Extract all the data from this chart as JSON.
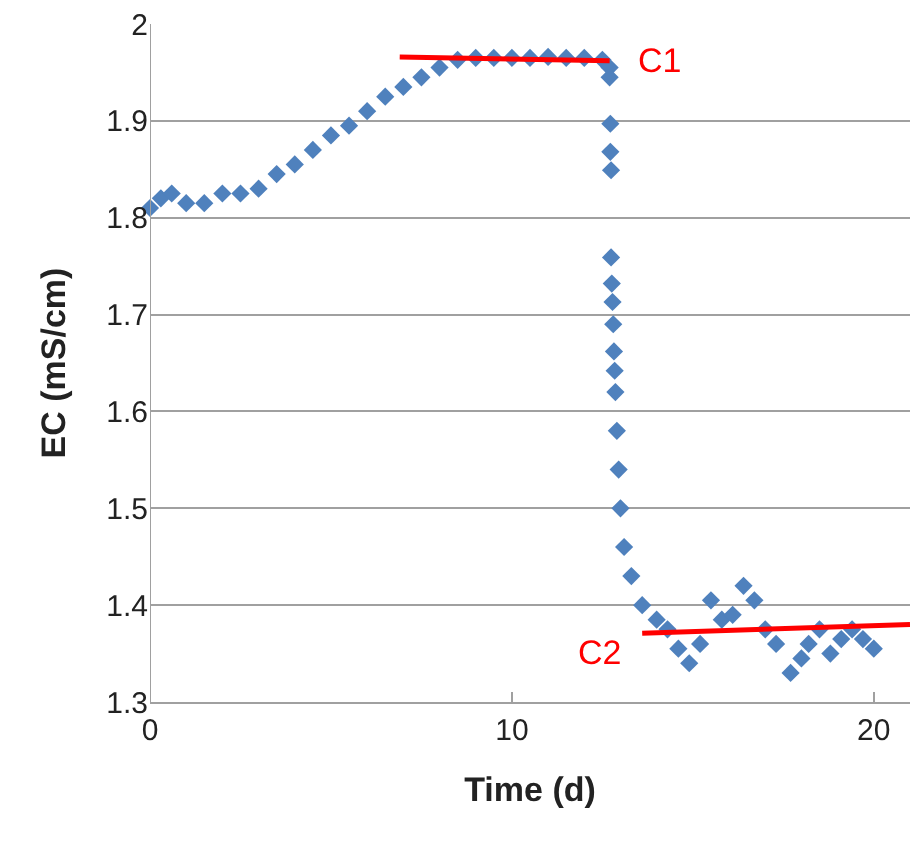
{
  "chart_data": {
    "type": "scatter",
    "xlabel": "Time (d)",
    "ylabel": "EC (mS/cm)",
    "xlim": [
      0,
      21
    ],
    "xticks": [
      0,
      10,
      20
    ],
    "ylim": [
      1.3,
      2
    ],
    "yticks": [
      1.3,
      1.4,
      1.5,
      1.6,
      1.7,
      1.8,
      1.9,
      2
    ],
    "grid": "y",
    "series": [
      {
        "color": "#4f81bd",
        "marker": "diamond",
        "x": [
          0,
          0.3,
          0.6,
          1,
          1.5,
          2,
          2.5,
          3,
          3.5,
          4,
          4.5,
          5,
          5.5,
          6,
          6.5,
          7,
          7.5,
          8,
          8.5,
          9,
          9.5,
          10,
          10.5,
          11,
          11.5,
          12,
          12.5,
          12.7,
          12.7,
          12.72,
          12.72,
          12.74,
          12.74,
          12.76,
          12.78,
          12.8,
          12.82,
          12.84,
          12.86,
          12.9,
          12.95,
          13,
          13.1,
          13.3,
          13.6,
          14,
          14.3,
          14.6,
          14.9,
          15.2,
          15.5,
          15.8,
          16.1,
          16.4,
          16.7,
          17,
          17.3,
          17.7,
          18,
          18.2,
          18.5,
          18.8,
          19.1,
          19.4,
          19.7,
          20
        ],
        "values": [
          1.81,
          1.82,
          1.825,
          1.815,
          1.815,
          1.825,
          1.825,
          1.83,
          1.845,
          1.855,
          1.87,
          1.885,
          1.895,
          1.91,
          1.925,
          1.935,
          1.945,
          1.955,
          1.963,
          1.965,
          1.965,
          1.965,
          1.965,
          1.966,
          1.965,
          1.965,
          1.963,
          1.955,
          1.945,
          1.897,
          1.868,
          1.849,
          1.759,
          1.732,
          1.713,
          1.69,
          1.662,
          1.642,
          1.62,
          1.58,
          1.54,
          1.5,
          1.46,
          1.43,
          1.4,
          1.385,
          1.375,
          1.355,
          1.34,
          1.36,
          1.405,
          1.385,
          1.39,
          1.42,
          1.405,
          1.375,
          1.36,
          1.33,
          1.345,
          1.36,
          1.375,
          1.35,
          1.365,
          1.375,
          1.365,
          1.355
        ]
      },
      {
        "type": "line",
        "marker": "none",
        "color": "#ff0000",
        "x": [
          6.9,
          12.7
        ],
        "values": [
          1.966,
          1.962
        ]
      },
      {
        "type": "line",
        "marker": "none",
        "color": "#ff0000",
        "x": [
          13.6,
          21
        ],
        "values": [
          1.371,
          1.38
        ]
      }
    ],
    "annotations": [
      "C1",
      "C2"
    ]
  }
}
